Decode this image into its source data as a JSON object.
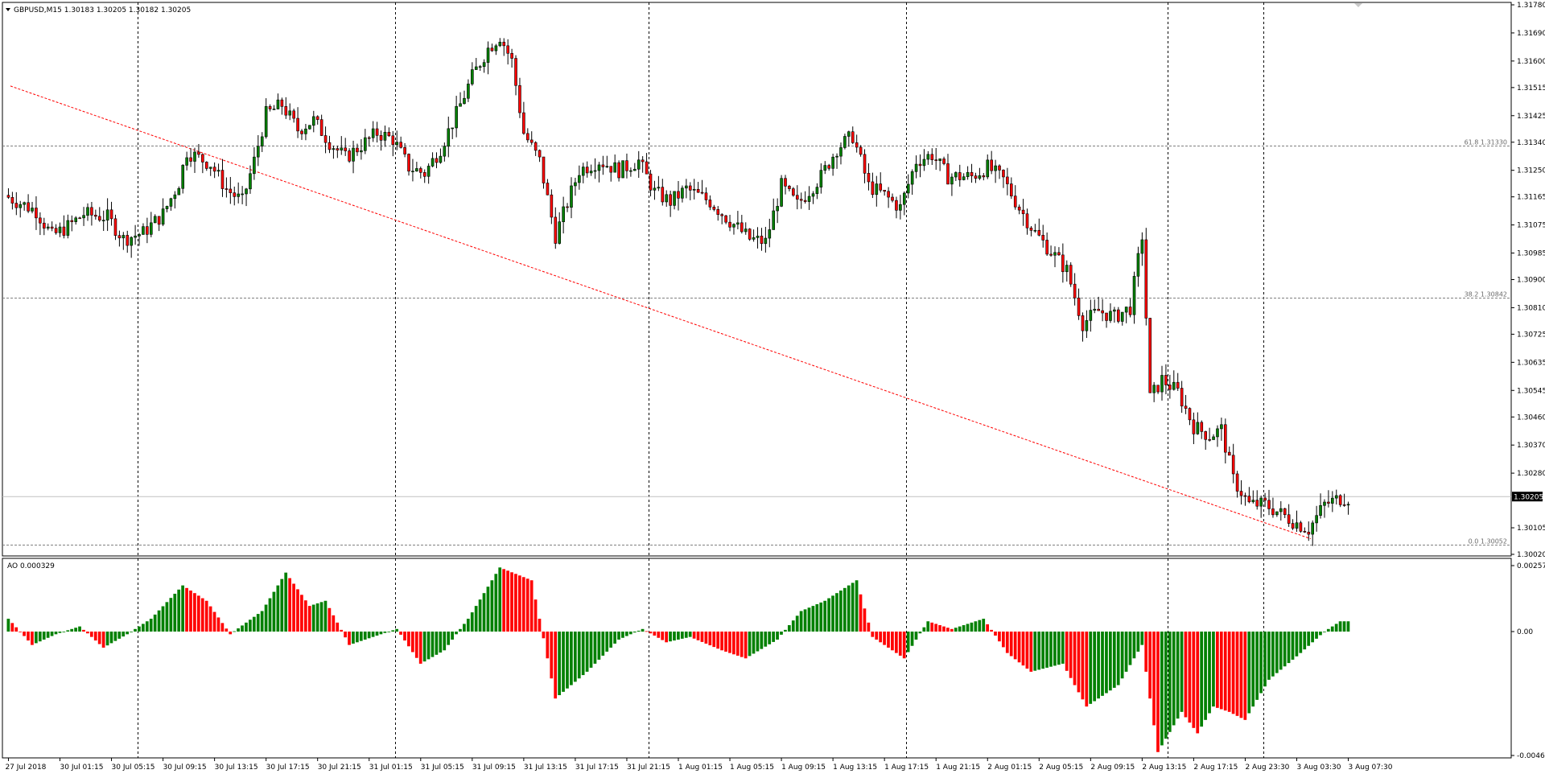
{
  "header": {
    "symbol_line": "GBPUSD,M15  1.30183 1.30205 1.30182 1.30205",
    "indicator_label": "AO 0.000329"
  },
  "price_axis": {
    "labels": [
      "1.31780",
      "1.31690",
      "1.31600",
      "1.31515",
      "1.31425",
      "1.31340",
      "1.31250",
      "1.31165",
      "1.31075",
      "1.30985",
      "1.30900",
      "1.30810",
      "1.30725",
      "1.30635",
      "1.30545",
      "1.30460",
      "1.30370",
      "1.30280",
      "1.30105",
      "1.30020"
    ],
    "current_price": "1.30205"
  },
  "indicator_axis": {
    "labels": [
      "0.002573",
      "0.00",
      "-0.004628"
    ]
  },
  "time_axis": {
    "labels": [
      "27 Jul 2018",
      "30 Jul 01:15",
      "30 Jul 05:15",
      "30 Jul 09:15",
      "30 Jul 13:15",
      "30 Jul 17:15",
      "30 Jul 21:15",
      "31 Jul 01:15",
      "31 Jul 05:15",
      "31 Jul 09:15",
      "31 Jul 13:15",
      "31 Jul 17:15",
      "31 Jul 21:15",
      "1 Aug 01:15",
      "1 Aug 05:15",
      "1 Aug 09:15",
      "1 Aug 13:15",
      "1 Aug 17:15",
      "1 Aug 21:15",
      "2 Aug 01:15",
      "2 Aug 05:15",
      "2 Aug 09:15",
      "2 Aug 13:15",
      "2 Aug 17:15",
      "2 Aug 23:30",
      "3 Aug 03:30",
      "3 Aug 07:30"
    ]
  },
  "fibonacci": [
    {
      "label": "61.8 1.31330",
      "price": 1.3133
    },
    {
      "label": "38.2 1.30842",
      "price": 1.30842
    },
    {
      "label": "0.0 1.30052",
      "price": 1.30052
    }
  ],
  "colors": {
    "bull": "#008000",
    "bear": "#ff0000",
    "grid": "#000000",
    "trendline": "#ff0000",
    "fib": "#808080"
  },
  "chart_data": {
    "type": "candlestick",
    "symbol": "GBPUSD",
    "timeframe": "M15",
    "ylim": [
      1.3002,
      1.3182
    ],
    "ao_ylim": [
      -0.004628,
      0.002573
    ],
    "price_path": [
      [
        0,
        1.3117
      ],
      [
        8,
        1.3112
      ],
      [
        12,
        1.3104
      ],
      [
        16,
        1.3107
      ],
      [
        20,
        1.3111
      ],
      [
        26,
        1.311
      ],
      [
        30,
        1.3103
      ],
      [
        35,
        1.3105
      ],
      [
        40,
        1.3111
      ],
      [
        44,
        1.3121
      ],
      [
        46,
        1.3131
      ],
      [
        52,
        1.3127
      ],
      [
        56,
        1.3119
      ],
      [
        60,
        1.3115
      ],
      [
        63,
        1.3128
      ],
      [
        66,
        1.3143
      ],
      [
        70,
        1.3146
      ],
      [
        74,
        1.3138
      ],
      [
        78,
        1.3141
      ],
      [
        82,
        1.3134
      ],
      [
        86,
        1.3129
      ],
      [
        90,
        1.3133
      ],
      [
        94,
        1.3137
      ],
      [
        98,
        1.3135
      ],
      [
        102,
        1.3126
      ],
      [
        106,
        1.3124
      ],
      [
        110,
        1.3132
      ],
      [
        114,
        1.3143
      ],
      [
        118,
        1.3155
      ],
      [
        122,
        1.3164
      ],
      [
        125,
        1.3168
      ],
      [
        128,
        1.316
      ],
      [
        131,
        1.3137
      ],
      [
        135,
        1.3128
      ],
      [
        139,
        1.3104
      ],
      [
        141,
        1.3111
      ],
      [
        145,
        1.3125
      ],
      [
        150,
        1.3128
      ],
      [
        155,
        1.3125
      ],
      [
        160,
        1.3128
      ],
      [
        164,
        1.3118
      ],
      [
        168,
        1.3115
      ],
      [
        172,
        1.3119
      ],
      [
        178,
        1.3115
      ],
      [
        182,
        1.311
      ],
      [
        188,
        1.3103
      ],
      [
        192,
        1.3102
      ],
      [
        196,
        1.312
      ],
      [
        200,
        1.3114
      ],
      [
        206,
        1.3123
      ],
      [
        210,
        1.3132
      ],
      [
        214,
        1.3136
      ],
      [
        218,
        1.312
      ],
      [
        222,
        1.3117
      ],
      [
        226,
        1.3113
      ],
      [
        230,
        1.3128
      ],
      [
        234,
        1.313
      ],
      [
        238,
        1.3123
      ],
      [
        244,
        1.3123
      ],
      [
        248,
        1.3126
      ],
      [
        252,
        1.3122
      ],
      [
        256,
        1.3113
      ],
      [
        260,
        1.3105
      ],
      [
        264,
        1.3099
      ],
      [
        268,
        1.3093
      ],
      [
        272,
        1.3076
      ],
      [
        276,
        1.308
      ],
      [
        280,
        1.3078
      ],
      [
        284,
        1.3081
      ],
      [
        287,
        1.3104
      ],
      [
        289,
        1.3052
      ],
      [
        292,
        1.3058
      ],
      [
        296,
        1.3054
      ],
      [
        300,
        1.3043
      ],
      [
        304,
        1.304
      ],
      [
        307,
        1.3042
      ],
      [
        310,
        1.3026
      ],
      [
        314,
        1.3018
      ],
      [
        318,
        1.3018
      ],
      [
        322,
        1.3015
      ],
      [
        326,
        1.3012
      ],
      [
        329,
        1.301
      ],
      [
        333,
        1.3018
      ],
      [
        337,
        1.302
      ]
    ],
    "ao_path": [
      [
        0,
        0.0005
      ],
      [
        6,
        -0.0005
      ],
      [
        12,
        -0.0001
      ],
      [
        18,
        0.0002
      ],
      [
        24,
        -0.0006
      ],
      [
        30,
        -0.0001
      ],
      [
        36,
        0.0005
      ],
      [
        44,
        0.0018
      ],
      [
        50,
        0.0012
      ],
      [
        56,
        -0.0001
      ],
      [
        64,
        0.0008
      ],
      [
        70,
        0.0023
      ],
      [
        76,
        0.001
      ],
      [
        80,
        0.0012
      ],
      [
        86,
        -0.0005
      ],
      [
        92,
        -0.0002
      ],
      [
        98,
        0.0001
      ],
      [
        104,
        -0.0012
      ],
      [
        110,
        -0.0007
      ],
      [
        116,
        0.0005
      ],
      [
        124,
        0.0025
      ],
      [
        132,
        0.002
      ],
      [
        138,
        -0.0025
      ],
      [
        146,
        -0.0015
      ],
      [
        154,
        -0.0003
      ],
      [
        160,
        0.0001
      ],
      [
        166,
        -0.0004
      ],
      [
        172,
        -0.0002
      ],
      [
        180,
        -0.0007
      ],
      [
        186,
        -0.001
      ],
      [
        194,
        -0.0003
      ],
      [
        200,
        0.0008
      ],
      [
        206,
        0.0012
      ],
      [
        214,
        0.002
      ],
      [
        218,
        -0.0002
      ],
      [
        226,
        -0.001
      ],
      [
        232,
        0.0004
      ],
      [
        238,
        0.0001
      ],
      [
        246,
        0.0005
      ],
      [
        252,
        -0.0008
      ],
      [
        258,
        -0.0015
      ],
      [
        266,
        -0.0012
      ],
      [
        272,
        -0.0028
      ],
      [
        280,
        -0.002
      ],
      [
        286,
        -0.0005
      ],
      [
        290,
        -0.0045
      ],
      [
        296,
        -0.003
      ],
      [
        300,
        -0.0038
      ],
      [
        304,
        -0.0028
      ],
      [
        308,
        -0.003
      ],
      [
        312,
        -0.0033
      ],
      [
        318,
        -0.0018
      ],
      [
        326,
        -0.0008
      ],
      [
        332,
        0.0
      ],
      [
        336,
        0.0004
      ],
      [
        338,
        0.0004
      ]
    ],
    "trendline": {
      "from": [
        1,
        1.3152
      ],
      "to": [
        329,
        1.3007
      ]
    }
  }
}
